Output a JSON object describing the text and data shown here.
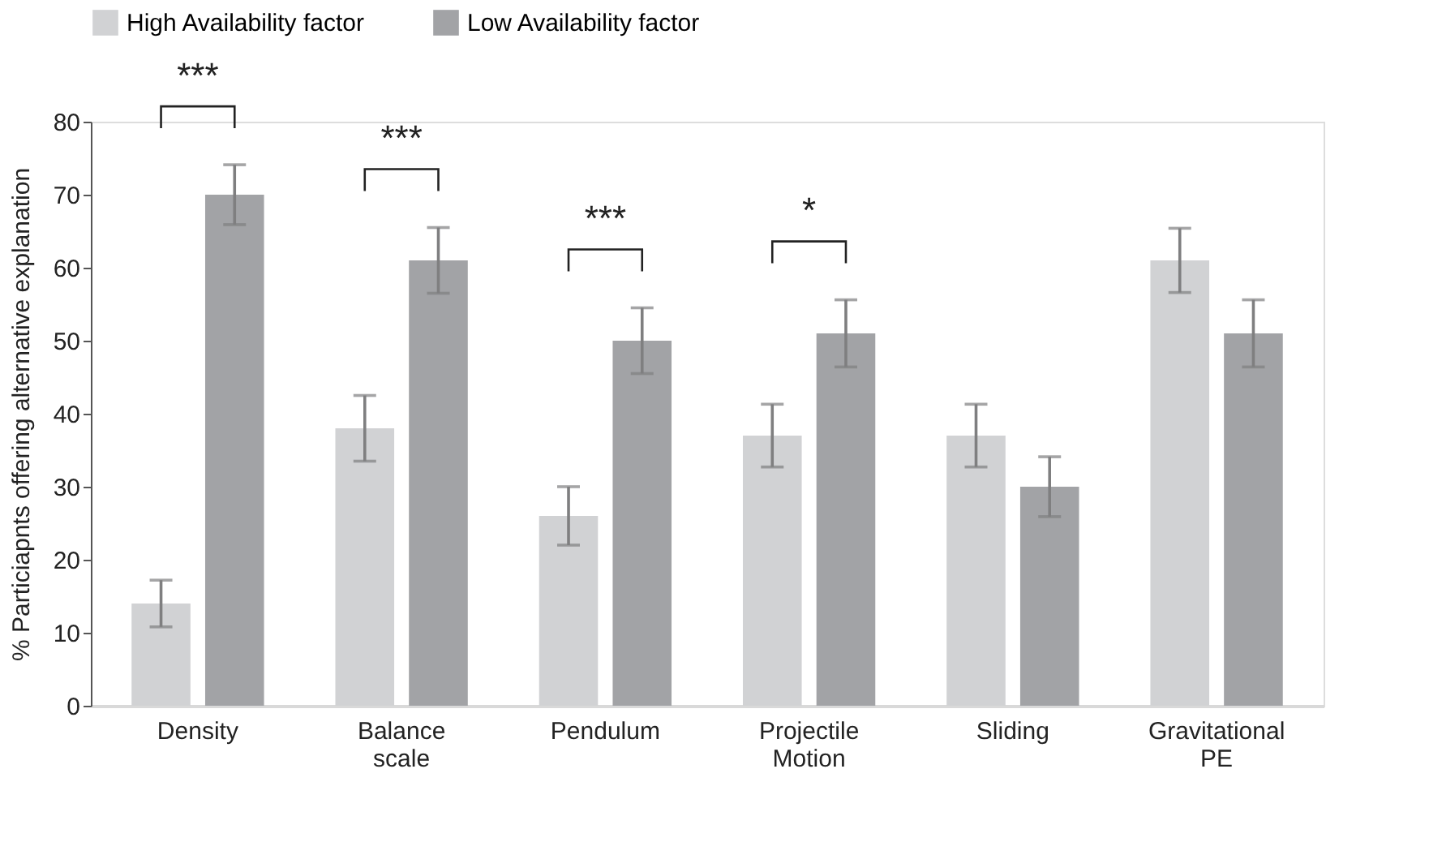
{
  "chart_data": {
    "type": "bar",
    "ylabel": "% Particiapnts offering alternative explanation",
    "categories": [
      "Density",
      "Balance scale",
      "Pendulum",
      "Projectile Motion",
      "Sliding",
      "Gravitational PE"
    ],
    "series": [
      {
        "name": "High Availability factor",
        "color": "#d1d2d4",
        "values": [
          14,
          38,
          26,
          37,
          37,
          61
        ],
        "errors": [
          3.2,
          4.5,
          4,
          4.3,
          4.3,
          4.4
        ]
      },
      {
        "name": "Low Availability factor",
        "color": "#a2a3a6",
        "values": [
          70,
          61,
          50,
          51,
          30,
          51
        ],
        "errors": [
          4.1,
          4.5,
          4.5,
          4.6,
          4.1,
          4.6
        ]
      }
    ],
    "ylim": [
      0,
      80
    ],
    "yticks": [
      0,
      10,
      20,
      30,
      40,
      50,
      60,
      70,
      80
    ],
    "grid": false,
    "legend": "top",
    "annotations": [
      "***",
      "***",
      "***",
      "*"
    ]
  }
}
